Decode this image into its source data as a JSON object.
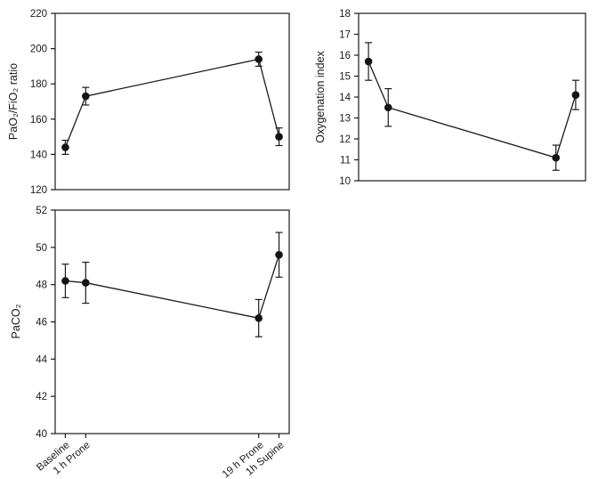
{
  "figure": {
    "background": "#ffffff",
    "ink_color": "#1a1a1a",
    "marker_color": "#141414"
  },
  "x_categories": [
    "Baseline",
    "1 h Prone",
    "19 h Prone",
    "1h Supine"
  ],
  "chart_data": [
    {
      "id": "pao2-fio2-ratio",
      "type": "line",
      "title": "",
      "xlabel": "",
      "ylabel": "PaO₂/FiO₂ ratio",
      "categories": [
        "Baseline",
        "1 h Prone",
        "19 h Prone",
        "1h Supine"
      ],
      "x": [
        0,
        2,
        19,
        21
      ],
      "xlim": [
        -1,
        22
      ],
      "values": [
        144,
        173,
        194,
        150
      ],
      "errors": [
        4,
        5,
        4,
        5
      ],
      "ylim": [
        120,
        220
      ],
      "yticks": [
        120,
        140,
        160,
        180,
        200,
        220
      ],
      "show_x_labels": false,
      "marker": "filled-circle",
      "error_bars": true,
      "grid": false,
      "legend": false
    },
    {
      "id": "oxygenation-index",
      "type": "line",
      "title": "",
      "xlabel": "",
      "ylabel": "Oxygenation index",
      "categories": [
        "Baseline",
        "1 h Prone",
        "19 h Prone",
        "1h Supine"
      ],
      "x": [
        0,
        2,
        19,
        21
      ],
      "xlim": [
        -1,
        22
      ],
      "values": [
        15.7,
        13.5,
        11.1,
        14.1
      ],
      "errors": [
        0.9,
        0.9,
        0.6,
        0.7
      ],
      "ylim": [
        10,
        18
      ],
      "yticks": [
        10,
        11,
        12,
        13,
        14,
        15,
        16,
        17,
        18
      ],
      "show_x_labels": false,
      "marker": "filled-circle",
      "error_bars": true,
      "grid": false,
      "legend": false
    },
    {
      "id": "paco2",
      "type": "line",
      "title": "",
      "xlabel": "",
      "ylabel": "PaCO₂",
      "categories": [
        "Baseline",
        "1 h Prone",
        "19 h Prone",
        "1h Supine"
      ],
      "x": [
        0,
        2,
        19,
        21
      ],
      "xlim": [
        -1,
        22
      ],
      "values": [
        48.2,
        48.1,
        46.2,
        49.6
      ],
      "errors": [
        0.9,
        1.1,
        1.0,
        1.2
      ],
      "ylim": [
        40,
        52
      ],
      "yticks": [
        40,
        42,
        44,
        46,
        48,
        50,
        52
      ],
      "show_x_labels": true,
      "marker": "filled-circle",
      "error_bars": true,
      "grid": false,
      "legend": false
    }
  ]
}
